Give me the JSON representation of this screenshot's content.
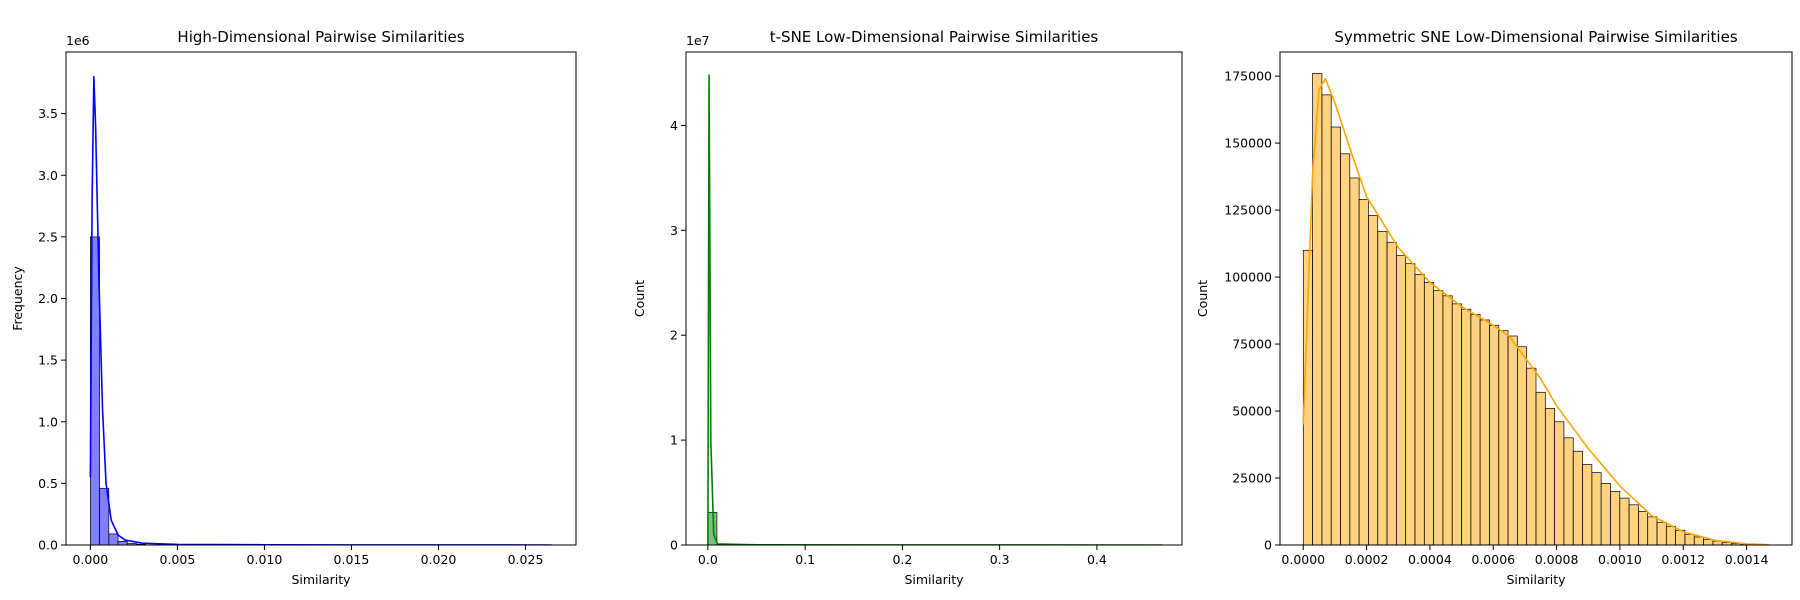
{
  "chart_data": [
    {
      "type": "histogram",
      "title": "High-Dimensional Pairwise Similarities",
      "xlabel": "Similarity",
      "ylabel": "Frequency",
      "y_multiplier_label": "1e6",
      "xlim": [
        -0.0014,
        0.0279
      ],
      "ylim": [
        0,
        4000000
      ],
      "xticks": [
        0.0,
        0.005,
        0.01,
        0.015,
        0.02,
        0.025
      ],
      "xtick_labels": [
        "0.000",
        "0.005",
        "0.010",
        "0.015",
        "0.020",
        "0.025"
      ],
      "yticks": [
        0,
        500000,
        1000000,
        1500000,
        2000000,
        2500000,
        3000000,
        3500000
      ],
      "ytick_labels": [
        "0.0",
        "0.5",
        "1.0",
        "1.5",
        "2.0",
        "2.5",
        "3.0",
        "3.5"
      ],
      "bar_color": "#0000ff",
      "bin_edges": [
        0,
        0.00053,
        0.00106,
        0.00159,
        0.00212,
        0.00265,
        0.00318
      ],
      "counts": [
        2500000,
        460000,
        90000,
        30000,
        12000,
        6000
      ],
      "kde_x": [
        0,
        0.0001,
        0.0002,
        0.0003,
        0.0005,
        0.0007,
        0.0009,
        0.0012,
        0.0016,
        0.002,
        0.003,
        0.005,
        0.01,
        0.015,
        0.02,
        0.0265
      ],
      "kde_y": [
        550000,
        2800000,
        3800000,
        3400000,
        2100000,
        1100000,
        500000,
        200000,
        80000,
        40000,
        15000,
        5000,
        2000,
        1000,
        500,
        0
      ]
    },
    {
      "type": "histogram",
      "title": "t-SNE Low-Dimensional Pairwise Similarities",
      "xlabel": "Similarity",
      "ylabel": "Count",
      "y_multiplier_label": "1e7",
      "xlim": [
        -0.0225,
        0.4875
      ],
      "ylim": [
        0,
        47000000
      ],
      "xticks": [
        0.0,
        0.1,
        0.2,
        0.3,
        0.4
      ],
      "xtick_labels": [
        "0.0",
        "0.1",
        "0.2",
        "0.3",
        "0.4"
      ],
      "yticks": [
        0,
        10000000,
        20000000,
        30000000,
        40000000
      ],
      "ytick_labels": [
        "0",
        "1",
        "2",
        "3",
        "4"
      ],
      "bar_color": "#008000",
      "bin_edges": [
        0.0,
        0.0093
      ],
      "counts": [
        3100000
      ],
      "kde_x": [
        0,
        0.0012,
        0.003,
        0.006,
        0.01,
        0.05,
        0.2,
        0.467
      ],
      "kde_y": [
        0,
        44800000,
        10000000,
        1000000,
        100000,
        20000,
        10000,
        0
      ]
    },
    {
      "type": "histogram",
      "title": "Symmetric SNE Low-Dimensional Pairwise Similarities",
      "xlabel": "Similarity",
      "ylabel": "Count",
      "xlim": [
        -7.35e-05,
        0.0015435
      ],
      "ylim": [
        0,
        184000
      ],
      "xticks": [
        0.0,
        0.0002,
        0.0004,
        0.0006,
        0.0008,
        0.001,
        0.0012,
        0.0014
      ],
      "xtick_labels": [
        "0.0000",
        "0.0002",
        "0.0004",
        "0.0006",
        "0.0008",
        "0.0010",
        "0.0012",
        "0.0014"
      ],
      "yticks": [
        0,
        25000,
        50000,
        75000,
        100000,
        125000,
        150000,
        175000
      ],
      "ytick_labels": [
        "0",
        "25000",
        "50000",
        "75000",
        "100000",
        "125000",
        "150000",
        "175000"
      ],
      "bar_color": "#ffa500",
      "bin_range": [
        0,
        0.00147
      ],
      "bin_count": 50,
      "counts": [
        110000,
        176000,
        168000,
        156000,
        146000,
        137000,
        129000,
        123000,
        117000,
        113000,
        108000,
        105000,
        101000,
        98000,
        95000,
        93000,
        90000,
        88000,
        86000,
        84000,
        82000,
        80000,
        78000,
        74000,
        66000,
        57000,
        51000,
        46000,
        40000,
        35000,
        30000,
        27000,
        23000,
        20000,
        17500,
        15000,
        12500,
        10500,
        8500,
        7000,
        5500,
        4000,
        3000,
        2000,
        1400,
        900,
        500,
        300,
        150,
        80
      ],
      "kde_x": [
        0,
        3e-05,
        5e-05,
        7e-05,
        0.0001,
        0.00015,
        0.0002,
        0.0003,
        0.0004,
        0.0005,
        0.0006,
        0.00065,
        0.0007,
        0.00075,
        0.0008,
        0.0009,
        0.001,
        0.0011,
        0.0012,
        0.0013,
        0.0014,
        0.00147
      ],
      "kde_y": [
        45000,
        140000,
        170000,
        174000,
        165000,
        147000,
        130000,
        111000,
        98000,
        89000,
        82000,
        78000,
        70000,
        62000,
        52000,
        36000,
        22000,
        11000,
        5000,
        1700,
        400,
        100
      ]
    }
  ]
}
